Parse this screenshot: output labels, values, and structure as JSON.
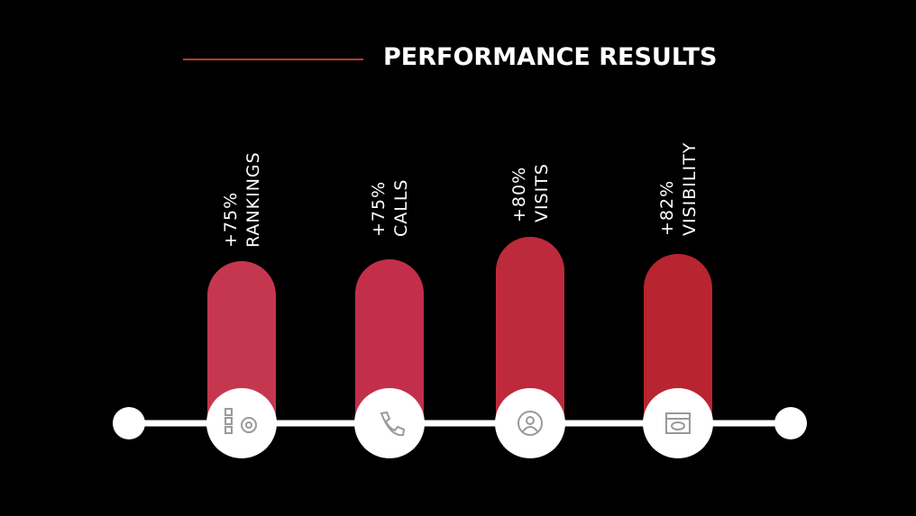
{
  "header": {
    "title": "PERFORMANCE RESULTS"
  },
  "items": [
    {
      "change": "+75%",
      "label": "RANKINGS"
    },
    {
      "change": "+75%",
      "label": "CALLS"
    },
    {
      "change": "+80%",
      "label": "VISITS"
    },
    {
      "change": "+82%",
      "label": "VISIBILITY"
    }
  ]
}
